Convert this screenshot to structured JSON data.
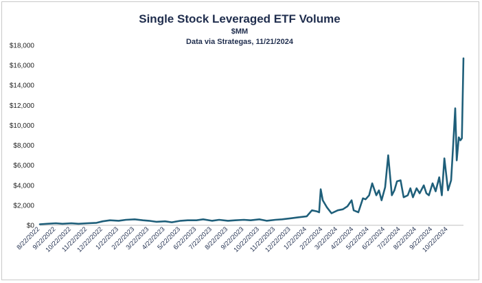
{
  "chart_data": {
    "type": "line",
    "title": "Single Stock Leveraged ETF Volume",
    "subtitle_lines": [
      "$MM",
      "Data via Strategas, 11/21/2024"
    ],
    "xlabel": "",
    "ylabel": "",
    "ylim": [
      0,
      18000
    ],
    "y_ticks": [
      "$0",
      "$2,000",
      "$4,000",
      "$6,000",
      "$8,000",
      "$10,000",
      "$12,000",
      "$14,000",
      "$16,000",
      "$18,000"
    ],
    "x_tick_labels": [
      "8/22/2022",
      "9/22/2022",
      "10/22/2022",
      "11/22/2022",
      "12/22/2022",
      "1/22/2023",
      "2/22/2023",
      "3/22/2023",
      "4/22/2023",
      "5/22/2023",
      "6/22/2023",
      "7/22/2023",
      "8/22/2023",
      "9/22/2023",
      "10/22/2023",
      "11/22/2023",
      "12/22/2023",
      "1/22/2024",
      "2/22/2024",
      "3/22/2024",
      "4/22/2024",
      "5/22/2024",
      "6/22/2024",
      "7/22/2024",
      "8/22/2024",
      "9/22/2024",
      "10/22/2024"
    ],
    "x_range": [
      "2022-08-22",
      "2024-11-21"
    ],
    "grid": false,
    "legend": "none",
    "series_color": "#1f5f7a",
    "series": [
      {
        "x": [
          "2022-08-22",
          "2022-09-05",
          "2022-09-22",
          "2022-10-05",
          "2022-10-22",
          "2022-11-05",
          "2022-11-22",
          "2022-12-10",
          "2022-12-22",
          "2023-01-05",
          "2023-01-22",
          "2023-02-05",
          "2023-02-22",
          "2023-03-10",
          "2023-03-22",
          "2023-04-05",
          "2023-04-22",
          "2023-05-05",
          "2023-05-22",
          "2023-06-05",
          "2023-06-22",
          "2023-07-05",
          "2023-07-22",
          "2023-08-05",
          "2023-08-22",
          "2023-09-05",
          "2023-09-22",
          "2023-10-05",
          "2023-10-22",
          "2023-11-05",
          "2023-11-22",
          "2023-12-05",
          "2023-12-22",
          "2024-01-05",
          "2024-01-22",
          "2024-02-01",
          "2024-02-10",
          "2024-02-15",
          "2024-02-18",
          "2024-02-22",
          "2024-03-01",
          "2024-03-10",
          "2024-03-22",
          "2024-04-01",
          "2024-04-10",
          "2024-04-18",
          "2024-04-22",
          "2024-05-01",
          "2024-05-10",
          "2024-05-15",
          "2024-05-22",
          "2024-05-28",
          "2024-06-05",
          "2024-06-10",
          "2024-06-15",
          "2024-06-22",
          "2024-06-28",
          "2024-07-05",
          "2024-07-10",
          "2024-07-15",
          "2024-07-22",
          "2024-07-28",
          "2024-08-05",
          "2024-08-10",
          "2024-08-15",
          "2024-08-22",
          "2024-08-28",
          "2024-09-05",
          "2024-09-10",
          "2024-09-15",
          "2024-09-22",
          "2024-09-28",
          "2024-10-05",
          "2024-10-10",
          "2024-10-15",
          "2024-10-22",
          "2024-10-28",
          "2024-11-01",
          "2024-11-05",
          "2024-11-08",
          "2024-11-12",
          "2024-11-15",
          "2024-11-18",
          "2024-11-21"
        ],
        "values": [
          100,
          150,
          200,
          150,
          200,
          150,
          200,
          250,
          400,
          500,
          450,
          550,
          600,
          500,
          450,
          350,
          400,
          300,
          450,
          500,
          500,
          600,
          450,
          550,
          450,
          500,
          550,
          500,
          600,
          450,
          550,
          600,
          700,
          800,
          900,
          1500,
          1400,
          1300,
          3600,
          2500,
          1800,
          1200,
          1500,
          1600,
          1900,
          2500,
          1500,
          1300,
          2700,
          2600,
          3000,
          4200,
          3000,
          3500,
          2500,
          3800,
          7000,
          3000,
          3500,
          4400,
          4500,
          2800,
          3000,
          3700,
          2800,
          3700,
          3200,
          4000,
          3200,
          3000,
          4200,
          3400,
          4800,
          3000,
          6700,
          3500,
          4500,
          8000,
          11700,
          6500,
          8800,
          8500,
          8700,
          16700
        ]
      }
    ]
  }
}
